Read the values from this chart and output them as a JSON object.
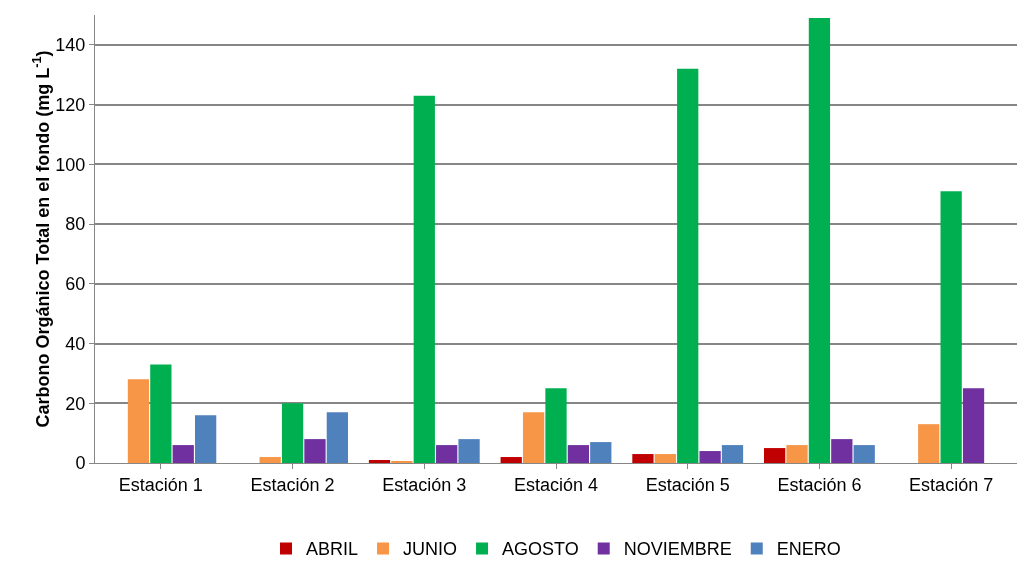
{
  "chart_data": {
    "type": "bar",
    "ylabel": "Carbono Orgánico Total en el fondo (mg L$^{-1}$)",
    "categories": [
      "Estación 1",
      "Estación 2",
      "Estación 3",
      "Estación 4",
      "Estación 5",
      "Estación 6",
      "Estación 7"
    ],
    "series": [
      {
        "name": "ABRIL",
        "color": "#c00000",
        "values": [
          null,
          null,
          1,
          2,
          3,
          5,
          null
        ]
      },
      {
        "name": "JUNIO",
        "color": "#f79646",
        "values": [
          28,
          2,
          0.5,
          17,
          3,
          6,
          13
        ]
      },
      {
        "name": "AGOSTO",
        "color": "#00b050",
        "values": [
          33,
          20,
          123,
          25,
          132,
          149,
          91
        ]
      },
      {
        "name": "NOVIEMBRE",
        "color": "#7030a0",
        "values": [
          6,
          8,
          6,
          6,
          4,
          8,
          25
        ]
      },
      {
        "name": "ENERO",
        "color": "#4f81bd",
        "values": [
          16,
          17,
          8,
          7,
          6,
          6,
          null
        ]
      }
    ],
    "ylim": [
      0,
      150
    ],
    "yticks": [
      0,
      20,
      40,
      60,
      80,
      100,
      120,
      140
    ],
    "grid": "y",
    "legend": "bottom"
  }
}
